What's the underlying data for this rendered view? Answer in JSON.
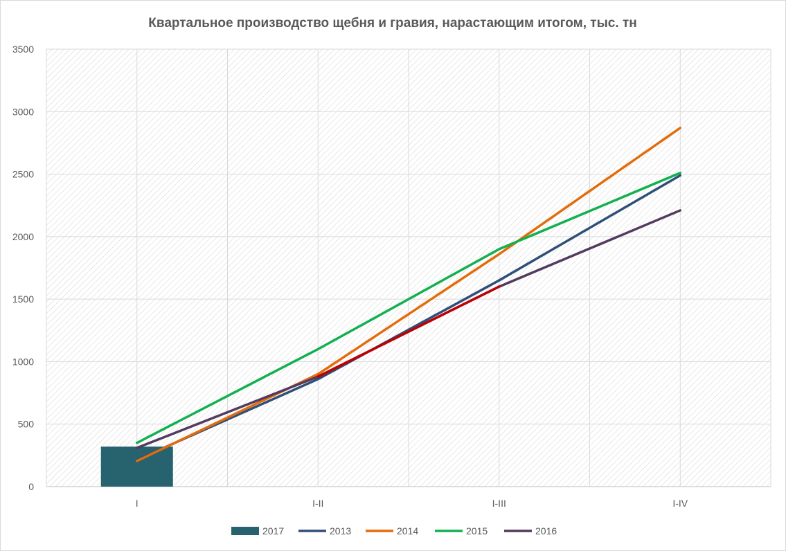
{
  "chart_data": {
    "type": "line",
    "title": "Квартальное производство щебня и гравия, нарастающим итогом, тыс. тн",
    "xlabel": "",
    "ylabel": "",
    "categories": [
      "I",
      "I-II",
      "I-III",
      "I-IV"
    ],
    "ylim": [
      0,
      3500
    ],
    "yticks": [
      0,
      500,
      1000,
      1500,
      2000,
      2500,
      3000,
      3500
    ],
    "grid": true,
    "legend": "bottom",
    "series": [
      {
        "name": "2017",
        "kind": "bar",
        "color": "#26636f",
        "values": [
          320,
          null,
          null,
          null
        ]
      },
      {
        "name": "2013",
        "kind": "line",
        "color": "#2e4f7a",
        "values": [
          215,
          860,
          1650,
          2490
        ]
      },
      {
        "name": "2014",
        "kind": "line",
        "color": "#e36c0a",
        "values": [
          205,
          900,
          1860,
          2870
        ]
      },
      {
        "name": "2015",
        "kind": "line",
        "color": "#12b04f",
        "values": [
          350,
          1100,
          1900,
          2510
        ]
      },
      {
        "name": "2016",
        "kind": "line",
        "color": "#533a5f",
        "values": [
          310,
          880,
          1600,
          2210
        ],
        "highlight": {
          "color": "#c00000",
          "from": 1,
          "to": 2
        }
      }
    ]
  }
}
